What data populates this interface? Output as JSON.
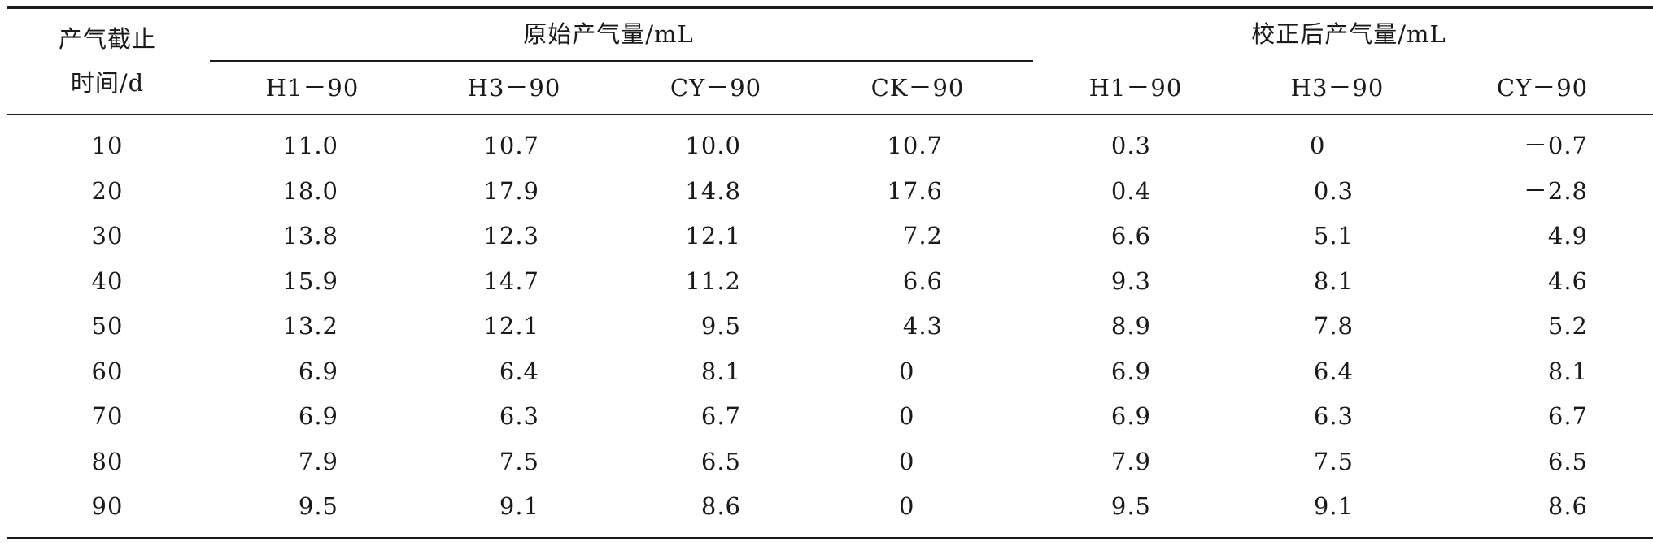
{
  "table": {
    "stub_header_line1": "产气截止",
    "stub_header_line2": "时间/d",
    "group_headers": [
      "原始产气量/mL",
      "校正后产气量/mL"
    ],
    "columns": [
      "H1－90",
      "H3－90",
      "CY－90",
      "CK－90",
      "H1－90",
      "H3－90",
      "CY－90"
    ],
    "rows": [
      {
        "time": "10",
        "values": [
          "11.0",
          "10.7",
          "10.0",
          "10.7",
          "0.3",
          "0",
          "－0.7"
        ]
      },
      {
        "time": "20",
        "values": [
          "18.0",
          "17.9",
          "14.8",
          "17.6",
          "0.4",
          "0.3",
          "－2.8"
        ]
      },
      {
        "time": "30",
        "values": [
          "13.8",
          "12.3",
          "12.1",
          "7.2",
          "6.6",
          "5.1",
          "4.9"
        ]
      },
      {
        "time": "40",
        "values": [
          "15.9",
          "14.7",
          "11.2",
          "6.6",
          "9.3",
          "8.1",
          "4.6"
        ]
      },
      {
        "time": "50",
        "values": [
          "13.2",
          "12.1",
          "9.5",
          "4.3",
          "8.9",
          "7.8",
          "5.2"
        ]
      },
      {
        "time": "60",
        "values": [
          "6.9",
          "6.4",
          "8.1",
          "0",
          "6.9",
          "6.4",
          "8.1"
        ]
      },
      {
        "time": "70",
        "values": [
          "6.9",
          "6.3",
          "6.7",
          "0",
          "6.9",
          "6.3",
          "6.7"
        ]
      },
      {
        "time": "80",
        "values": [
          "7.9",
          "7.5",
          "6.5",
          "0",
          "7.9",
          "7.5",
          "6.5"
        ]
      },
      {
        "time": "90",
        "values": [
          "9.5",
          "9.1",
          "8.6",
          "0",
          "9.5",
          "9.1",
          "8.6"
        ]
      }
    ]
  }
}
